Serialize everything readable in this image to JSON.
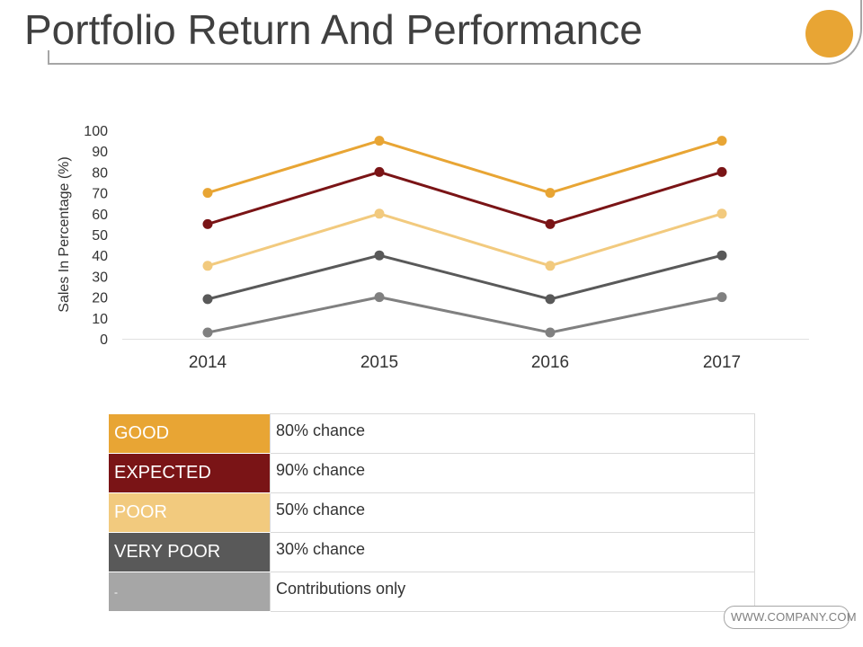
{
  "slide": {
    "title": "Portfolio Return And Performance",
    "accent_color": "#E8A534"
  },
  "chart_data": {
    "type": "line",
    "title": "",
    "xlabel": "",
    "ylabel": "Sales In Percentage (%)",
    "categories": [
      "2014",
      "2015",
      "2016",
      "2017"
    ],
    "ylim": [
      0,
      100
    ],
    "yticks": [
      "0",
      "10",
      "20",
      "30",
      "40",
      "50",
      "60",
      "70",
      "80",
      "90",
      "100"
    ],
    "grid": false,
    "series": [
      {
        "color": "#E8A534",
        "values": [
          70,
          95,
          70,
          95
        ]
      },
      {
        "color": "#7A1416",
        "values": [
          55,
          80,
          55,
          80
        ]
      },
      {
        "color": "#F2CA7E",
        "values": [
          35,
          60,
          35,
          60
        ]
      },
      {
        "color": "#595959",
        "values": [
          19,
          40,
          19,
          40
        ]
      },
      {
        "color": "#808080",
        "values": [
          3,
          20,
          3,
          20
        ]
      }
    ]
  },
  "legend_table": {
    "rows": [
      {
        "label": "GOOD",
        "description": "80% chance",
        "color": "#E8A534"
      },
      {
        "label": "EXPECTED",
        "description": "90% chance",
        "color": "#7A1416"
      },
      {
        "label": "POOR",
        "description": "50% chance",
        "color": "#F2CA7E"
      },
      {
        "label": "VERY POOR",
        "description": "30% chance",
        "color": "#595959"
      },
      {
        "label": "-",
        "description": "Contributions only",
        "color": "#A6A6A6"
      }
    ]
  },
  "footer": {
    "website": "WWW.COMPANY.COM"
  }
}
